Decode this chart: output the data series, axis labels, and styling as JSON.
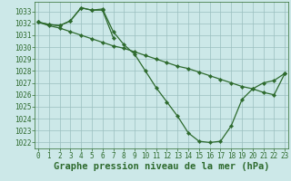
{
  "line1": {
    "x": [
      0,
      1,
      2,
      3,
      4,
      5,
      6,
      7,
      8,
      9,
      10,
      11,
      12,
      13,
      14,
      15,
      16,
      17,
      18,
      19,
      20,
      21,
      22,
      23
    ],
    "y": [
      1032.1,
      1031.8,
      1031.6,
      1031.3,
      1031.0,
      1030.7,
      1030.4,
      1030.1,
      1029.9,
      1029.6,
      1029.3,
      1029.0,
      1028.7,
      1028.4,
      1028.2,
      1027.9,
      1027.6,
      1027.3,
      1027.0,
      1026.7,
      1026.5,
      1026.2,
      1026.0,
      1027.8
    ]
  },
  "line2": {
    "x": [
      0,
      1,
      2,
      3,
      4,
      5,
      6,
      7,
      8,
      9,
      10,
      11,
      12,
      13,
      14,
      15,
      16,
      17,
      18,
      19,
      20,
      21,
      22,
      23
    ],
    "y": [
      1032.1,
      1031.9,
      1031.8,
      1032.2,
      1033.3,
      1033.1,
      1033.2,
      1031.3,
      1030.2,
      1029.4,
      1028.0,
      1026.6,
      1025.4,
      1024.2,
      1022.8,
      1022.1,
      1022.0,
      1022.1,
      1023.4,
      1025.6,
      1026.5,
      1027.0,
      1027.2,
      1027.8
    ]
  },
  "line3": {
    "x": [
      0,
      1,
      2,
      3,
      4,
      5,
      6,
      7
    ],
    "y": [
      1032.1,
      1031.9,
      1031.8,
      1032.2,
      1033.3,
      1033.1,
      1033.1,
      1030.8
    ]
  },
  "ylim": [
    1021.5,
    1033.8
  ],
  "xlim": [
    -0.3,
    23.3
  ],
  "yticks": [
    1022,
    1023,
    1024,
    1025,
    1026,
    1027,
    1028,
    1029,
    1030,
    1031,
    1032,
    1033
  ],
  "xticks": [
    0,
    1,
    2,
    3,
    4,
    5,
    6,
    7,
    8,
    9,
    10,
    11,
    12,
    13,
    14,
    15,
    16,
    17,
    18,
    19,
    20,
    21,
    22,
    23
  ],
  "xlabel": "Graphe pression niveau de la mer (hPa)",
  "bg_color": "#cce8e8",
  "grid_color": "#9bbfbf",
  "line_color": "#2d6a2d",
  "tick_fontsize": 5.5,
  "xlabel_fontsize": 7.5,
  "linewidth": 0.9,
  "markersize": 2.2
}
